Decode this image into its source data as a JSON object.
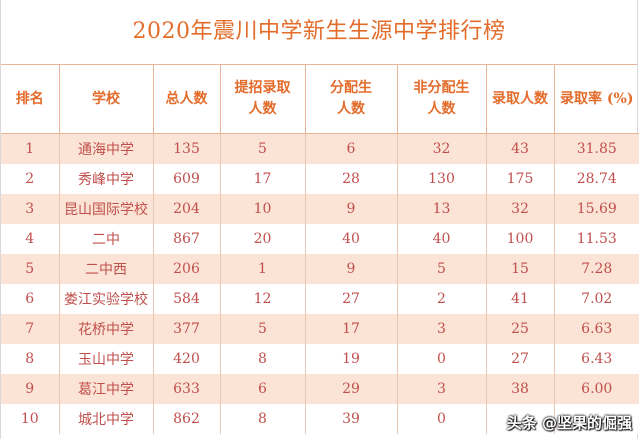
{
  "title": "2020年震川中学新生生源中学排行榜",
  "headers": {
    "rank": "排名",
    "school": "学校",
    "total": "总人数",
    "early_line1": "提招录取",
    "early_line2": "人数",
    "alloc_line1": "分配生",
    "alloc_line2": "人数",
    "nonalloc_line1": "非分配生",
    "nonalloc_line2": "人数",
    "admitted": "录取人数",
    "rate": "录取率 (%)"
  },
  "rows": [
    {
      "rank": "1",
      "school": "通海中学",
      "total": "135",
      "early": "5",
      "alloc": "6",
      "nonalloc": "32",
      "admitted": "43",
      "rate": "31.85"
    },
    {
      "rank": "2",
      "school": "秀峰中学",
      "total": "609",
      "early": "17",
      "alloc": "28",
      "nonalloc": "130",
      "admitted": "175",
      "rate": "28.74"
    },
    {
      "rank": "3",
      "school": "昆山国际学校",
      "total": "204",
      "early": "10",
      "alloc": "9",
      "nonalloc": "13",
      "admitted": "32",
      "rate": "15.69"
    },
    {
      "rank": "4",
      "school": "二中",
      "total": "867",
      "early": "20",
      "alloc": "40",
      "nonalloc": "40",
      "admitted": "100",
      "rate": "11.53"
    },
    {
      "rank": "5",
      "school": "二中西",
      "total": "206",
      "early": "1",
      "alloc": "9",
      "nonalloc": "5",
      "admitted": "15",
      "rate": "7.28"
    },
    {
      "rank": "6",
      "school": "娄江实验学校",
      "total": "584",
      "early": "12",
      "alloc": "27",
      "nonalloc": "2",
      "admitted": "41",
      "rate": "7.02"
    },
    {
      "rank": "7",
      "school": "花桥中学",
      "total": "377",
      "early": "5",
      "alloc": "17",
      "nonalloc": "3",
      "admitted": "25",
      "rate": "6.63"
    },
    {
      "rank": "8",
      "school": "玉山中学",
      "total": "420",
      "early": "8",
      "alloc": "19",
      "nonalloc": "0",
      "admitted": "27",
      "rate": "6.43"
    },
    {
      "rank": "9",
      "school": "葛江中学",
      "total": "633",
      "early": "6",
      "alloc": "29",
      "nonalloc": "3",
      "admitted": "38",
      "rate": "6.00"
    },
    {
      "rank": "10",
      "school": "城北中学",
      "total": "862",
      "early": "8",
      "alloc": "39",
      "nonalloc": "0",
      "admitted": "",
      "rate": ""
    }
  ],
  "watermark": "头条 @坚果的倔强"
}
